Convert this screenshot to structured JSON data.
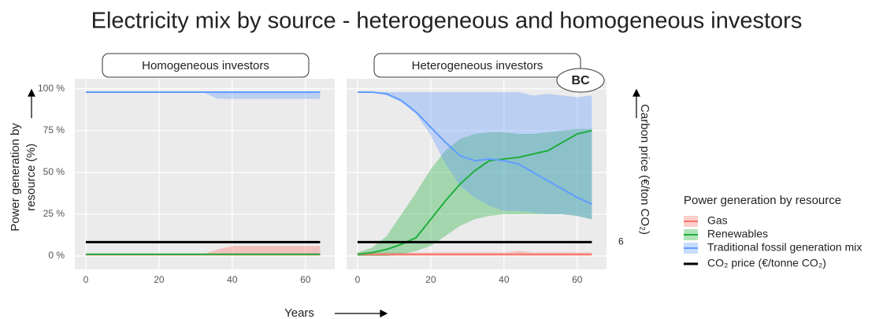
{
  "chart_data": {
    "type": "line",
    "title": "Electricity mix by source - heterogeneous and homogeneous investors",
    "ylabel": [
      "Power generation by",
      "resource (%)"
    ],
    "y2label": "Carbon price (€/ton CO₂)",
    "xlabel": "Years",
    "legend_title": "Power generation by resource",
    "legend": "right",
    "grid": true,
    "x": [
      0,
      4,
      8,
      12,
      16,
      20,
      24,
      28,
      32,
      36,
      40,
      44,
      48,
      52,
      56,
      60,
      64
    ],
    "xlim": [
      -3,
      68
    ],
    "xticks": [
      0,
      20,
      40,
      60
    ],
    "ylim": [
      -8,
      106
    ],
    "yticks": [
      {
        "value": 0,
        "label": "0 %"
      },
      {
        "value": 25,
        "label": "25 %"
      },
      {
        "value": 50,
        "label": "50 %"
      },
      {
        "value": 75,
        "label": "75 %"
      },
      {
        "value": 100,
        "label": "100 %"
      }
    ],
    "y2lim": [
      0,
      42
    ],
    "y2ticks": [
      6
    ],
    "series": [
      {
        "name": "Gas",
        "color": "#f8766d"
      },
      {
        "name": "Renewables",
        "color": "#1fae3c"
      },
      {
        "name": "Traditional fossil generation mix",
        "color": "#619cff"
      },
      {
        "name": "CO₂ price (€/tonne CO₂)",
        "color": "#000000",
        "axis": "y2"
      }
    ],
    "panels": [
      {
        "title": "Homogeneous investors",
        "series": [
          {
            "values": [
              1,
              1,
              1,
              1,
              1,
              1,
              1,
              1,
              1,
              1,
              1,
              1,
              1,
              1,
              1,
              1,
              1
            ],
            "lower": [
              0,
              0,
              0,
              0,
              0,
              0,
              0,
              0,
              0,
              0,
              0,
              0,
              0,
              0,
              0,
              0,
              0
            ],
            "upper": [
              1,
              1,
              1,
              1,
              1,
              1,
              1,
              1,
              1,
              4,
              6,
              6,
              6,
              6,
              6,
              6,
              6
            ]
          },
          {
            "values": [
              1,
              1,
              1,
              1,
              1,
              1,
              1,
              1,
              1,
              1,
              1,
              1,
              1,
              1,
              1,
              1,
              1
            ],
            "lower": [
              1,
              1,
              1,
              1,
              1,
              1,
              1,
              1,
              1,
              1,
              1,
              1,
              1,
              1,
              1,
              1,
              1
            ],
            "upper": [
              1,
              1,
              1,
              1,
              1,
              1,
              1,
              1,
              1,
              1,
              1,
              1,
              1,
              1,
              1,
              1,
              1
            ]
          },
          {
            "values": [
              98,
              98,
              98,
              98,
              98,
              98,
              98,
              98,
              98,
              98,
              98,
              98,
              98,
              98,
              98,
              98,
              98
            ],
            "lower": [
              98,
              98,
              98,
              98,
              98,
              98,
              98,
              98,
              98,
              94,
              94,
              94,
              94,
              94,
              94,
              94,
              94
            ],
            "upper": [
              98,
              98,
              98,
              98,
              98,
              98,
              98,
              98,
              98,
              98,
              98,
              98,
              98,
              98,
              98,
              98,
              98
            ]
          },
          {
            "values": [
              6,
              6,
              6,
              6,
              6,
              6,
              6,
              6,
              6,
              6,
              6,
              6,
              6,
              6,
              6,
              6,
              6
            ]
          }
        ]
      },
      {
        "title": "Heterogeneous investors",
        "badge": "BC",
        "series": [
          {
            "values": [
              1,
              1,
              1,
              1,
              1,
              1,
              1,
              1,
              1,
              1,
              1,
              1,
              1,
              1,
              1,
              1,
              1
            ],
            "lower": [
              0,
              0,
              0,
              0,
              0,
              0,
              0,
              0,
              0,
              0,
              0,
              0,
              0,
              0,
              0,
              0,
              0
            ],
            "upper": [
              2,
              2,
              2,
              2,
              2,
              2,
              2,
              2,
              2,
              2,
              2,
              3,
              2,
              2,
              2,
              2,
              2
            ]
          },
          {
            "values": [
              1,
              2,
              4,
              7,
              11,
              22,
              33,
              43,
              51,
              57,
              58,
              59,
              61,
              63,
              68,
              73,
              75
            ],
            "lower": [
              0,
              0,
              0,
              1,
              3,
              6,
              12,
              18,
              22,
              24,
              25,
              25,
              25,
              25,
              25,
              24,
              22
            ],
            "upper": [
              2,
              5,
              12,
              25,
              38,
              52,
              63,
              70,
              73,
              74,
              74,
              73,
              73,
              74,
              75,
              76,
              76
            ]
          },
          {
            "values": [
              98,
              98,
              97,
              93,
              86,
              77,
              68,
              60,
              57,
              58,
              57,
              55,
              50,
              45,
              40,
              35,
              31
            ],
            "lower": [
              98,
              98,
              96,
              92,
              85,
              72,
              55,
              42,
              35,
              30,
              27,
              27,
              26,
              25,
              25,
              24,
              22
            ],
            "upper": [
              98,
              98,
              98,
              98,
              98,
              98,
              98,
              98,
              98,
              98,
              98,
              98,
              96,
              97,
              96,
              95,
              96
            ]
          },
          {
            "values": [
              6,
              6,
              6,
              6,
              6,
              6,
              6,
              6,
              6,
              6,
              6,
              6,
              6,
              6,
              6,
              6,
              6
            ]
          }
        ]
      }
    ]
  }
}
